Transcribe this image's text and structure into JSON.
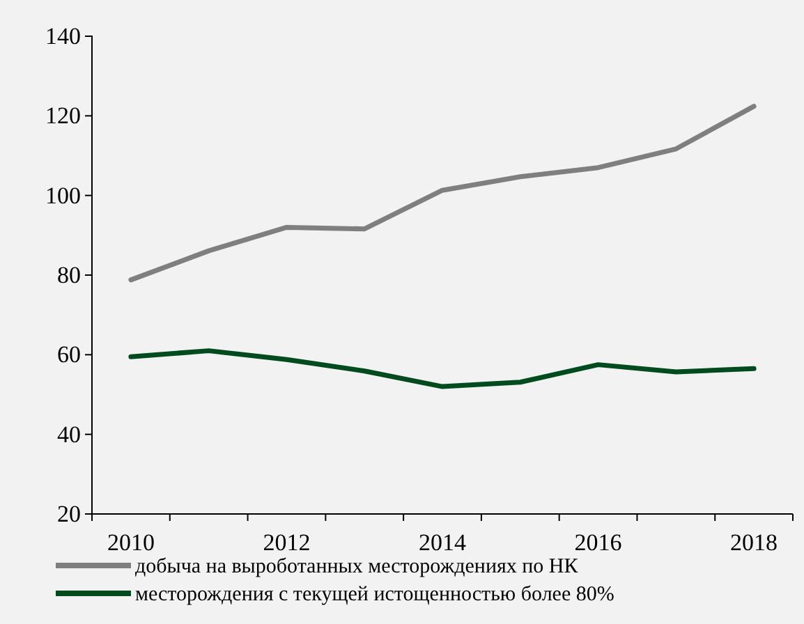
{
  "chart_data": {
    "type": "line",
    "categories": [
      "2010",
      null,
      "2012",
      null,
      "2014",
      null,
      "2016",
      null,
      "2018"
    ],
    "series": [
      {
        "name": "добыча на выроботанных месторождениях по НК",
        "color": "#7f7f7f",
        "values": [
          78.8,
          86.1,
          92,
          91.6,
          101.3,
          104.7,
          107,
          111.7,
          122.4
        ]
      },
      {
        "name": "месторождения с текущей истощенностью более 80%",
        "color": "#024b1f",
        "values": [
          59.5,
          61,
          58.8,
          55.9,
          52,
          53.1,
          57.5,
          55.7,
          56.5
        ]
      }
    ],
    "ylim": [
      20,
      140
    ],
    "yticks": [
      20,
      40,
      60,
      80,
      100,
      120,
      140
    ],
    "grid": false,
    "legend": "bottom",
    "marker": "none",
    "line_style": "solid"
  }
}
